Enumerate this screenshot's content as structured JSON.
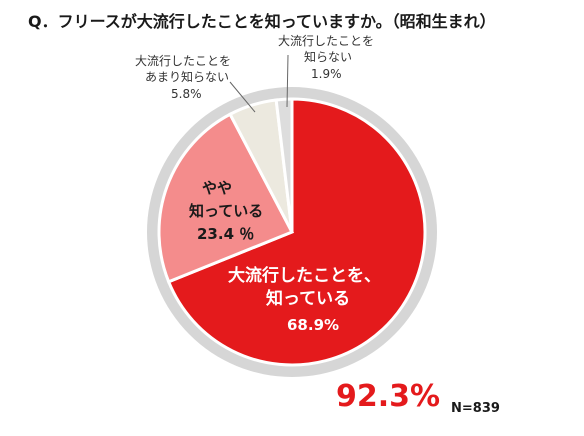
{
  "chart_data": {
    "type": "pie",
    "title": "Q．フリースが大流行したことを知っていますか。（昭和生まれ）",
    "slices": [
      {
        "label_lines": [
          "大流行したことを、",
          "知っている"
        ],
        "value_label": "68.9%",
        "value": 68.9,
        "color": "#e41a1c"
      },
      {
        "label_lines": [
          "やや",
          "知っている"
        ],
        "value_label": "23.4 ％",
        "value": 23.4,
        "color": "#f48c8c"
      },
      {
        "label_lines": [
          "大流行したことを",
          "あまり知らない"
        ],
        "value_label": "5.8%",
        "value": 5.8,
        "color": "#ece9df"
      },
      {
        "label_lines": [
          "大流行したことを",
          "知らない"
        ],
        "value_label": "1.9%",
        "value": 1.9,
        "color": "#dddddd"
      }
    ],
    "total_label": "92.3%",
    "n_label": "N=839"
  }
}
